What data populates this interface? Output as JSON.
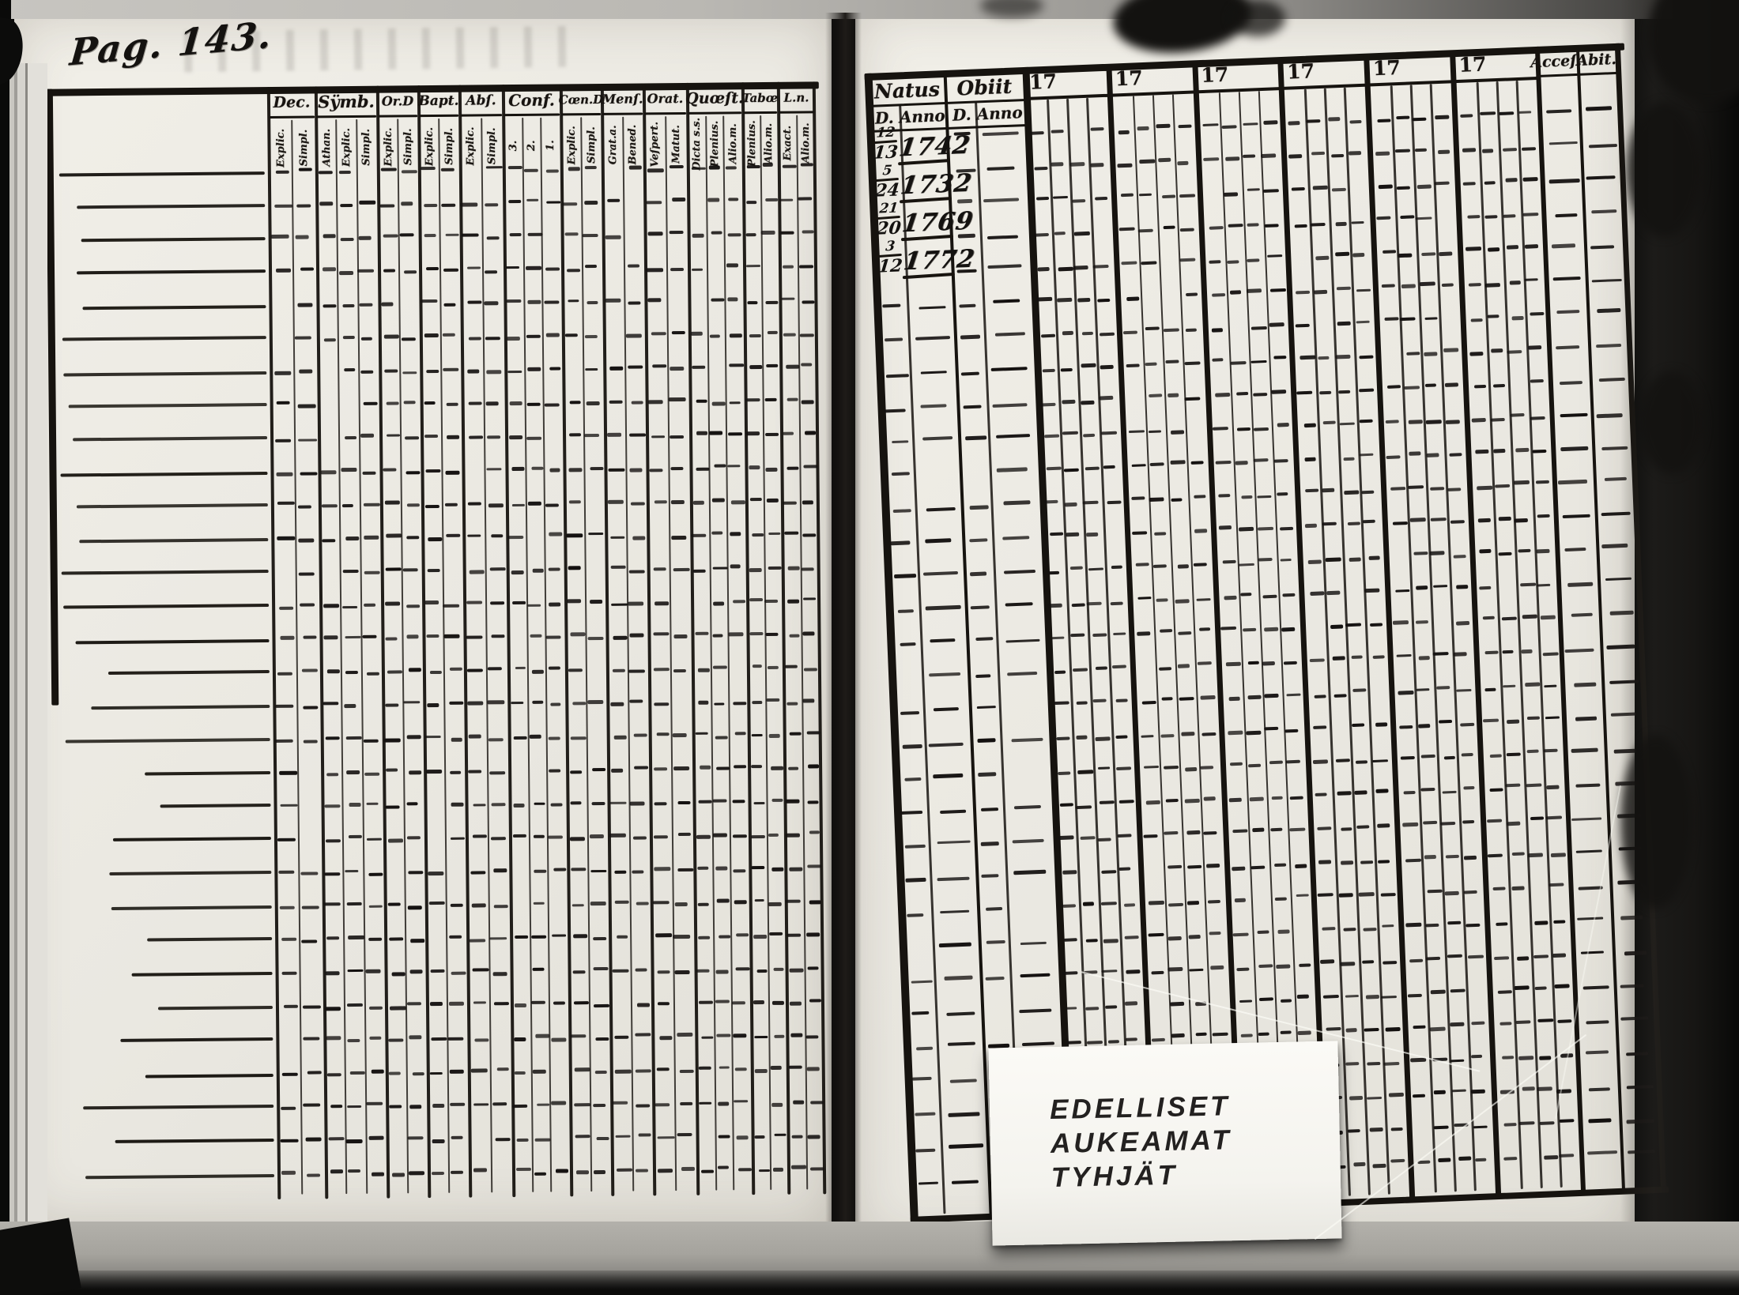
{
  "photo": {
    "left_page": {
      "handwritten_page_number": "Pag. 143.",
      "table": {
        "columns": [
          {
            "header": "Dec.",
            "subs": [
              "Explic.",
              "Simpl."
            ]
          },
          {
            "header": "Sÿmb.",
            "subs": [
              "Athan.",
              "Explic.",
              "Simpl."
            ]
          },
          {
            "header": "Or.D",
            "subs": [
              "Explic.",
              "Simpl."
            ]
          },
          {
            "header": "Bapt.",
            "subs": [
              "Explic.",
              "Simpl."
            ]
          },
          {
            "header": "Abſ.",
            "subs": [
              "Explic.",
              "Simpl."
            ]
          },
          {
            "header": "Conf.",
            "subs": [
              "3.",
              "2.",
              "1."
            ]
          },
          {
            "header": "Cœn.D",
            "subs": [
              "Explic.",
              "Simpl."
            ]
          },
          {
            "header": "Menſ.",
            "subs": [
              "Grat.a.",
              "Bened."
            ]
          },
          {
            "header": "Orat.",
            "subs": [
              "Veſpert.",
              "Matut."
            ]
          },
          {
            "header": "Quœſt.",
            "subs": [
              "Dicta s.s.",
              "Plenius.",
              "Alio.m."
            ]
          },
          {
            "header": "Tabœ",
            "subs": [
              "Plenius.",
              "Alio.m."
            ]
          },
          {
            "header": "L.n.",
            "subs": [
              "Exact.",
              "Alio.m."
            ]
          }
        ]
      }
    },
    "right_page": {
      "table": {
        "natus_header": "Natus",
        "obiit_header": "Obiit",
        "day_sub": "D.",
        "anno_sub": "Anno",
        "year_headers": [
          "17",
          "17",
          "17",
          "17",
          "17",
          "17"
        ],
        "acces_header": "Acceſ.",
        "abit_header": "Abit.",
        "entries": [
          {
            "day_top": "12",
            "day_bottom": "13",
            "anno": "1742"
          },
          {
            "day_top": "5",
            "day_bottom": "24",
            "anno": "1732"
          },
          {
            "day_top": "21",
            "day_bottom": "20",
            "anno": "1769"
          },
          {
            "day_top": "3",
            "day_bottom": "12",
            "anno": "1772"
          }
        ]
      },
      "archive_label": {
        "lines": [
          "EDELLISET",
          "AUKEAMAT",
          "TYHJÄT"
        ]
      }
    }
  }
}
